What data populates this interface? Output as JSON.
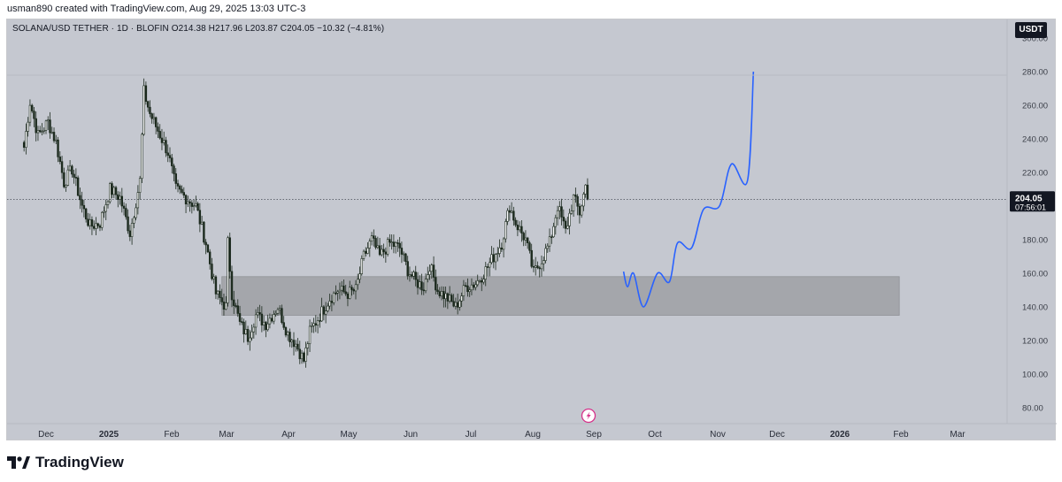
{
  "caption": "usman890 created with TradingView.com, Aug 29, 2025 13:03 UTC-3",
  "symbol_line": "SOLANA/USD TETHER · 1D · BLOFIN  O214.38  H217.96  L203.87  C204.05  −10.32 (−4.81%)",
  "currency": "USDT",
  "footer_logo": "TradingView",
  "icons": {
    "logo": "tradingview-logo-icon",
    "event": "lightning-event-icon"
  },
  "colors": {
    "background": "#c5c8d0",
    "candle_body": "#1c2a1e",
    "zone_fill": "#a4a6ab",
    "projection": "#2962ff",
    "price_badge": "#131722"
  },
  "chart_data": {
    "type": "candlestick",
    "title": "",
    "xlabel": "",
    "ylabel": "",
    "ylim": [
      72,
      304
    ],
    "y_ticks": [
      "80.00",
      "100.00",
      "120.00",
      "140.00",
      "160.00",
      "180.00",
      "200.00",
      "220.00",
      "240.00",
      "260.00",
      "280.00",
      "300.00"
    ],
    "x_ticks": [
      "Dec",
      "2025",
      "Feb",
      "Mar",
      "Apr",
      "May",
      "Jun",
      "Jul",
      "Aug",
      "Sep",
      "Oct",
      "Nov",
      "Dec",
      "2026",
      "Feb",
      "Mar"
    ],
    "last_price": "204.05",
    "countdown": "07:56:01",
    "price_path": [
      [
        "2024-11-20",
        235
      ],
      [
        "2024-11-23",
        262
      ],
      [
        "2024-11-27",
        242
      ],
      [
        "2024-12-02",
        250
      ],
      [
        "2024-12-06",
        238
      ],
      [
        "2024-12-10",
        214
      ],
      [
        "2024-12-14",
        222
      ],
      [
        "2024-12-19",
        200
      ],
      [
        "2024-12-23",
        188
      ],
      [
        "2024-12-28",
        190
      ],
      [
        "2025-01-02",
        210
      ],
      [
        "2025-01-07",
        205
      ],
      [
        "2025-01-12",
        184
      ],
      [
        "2025-01-17",
        215
      ],
      [
        "2025-01-19",
        268
      ],
      [
        "2025-01-22",
        255
      ],
      [
        "2025-01-26",
        245
      ],
      [
        "2025-01-31",
        232
      ],
      [
        "2025-02-04",
        210
      ],
      [
        "2025-02-09",
        205
      ],
      [
        "2025-02-14",
        200
      ],
      [
        "2025-02-19",
        178
      ],
      [
        "2025-02-24",
        148
      ],
      [
        "2025-03-01",
        140
      ],
      [
        "2025-03-02",
        178
      ],
      [
        "2025-03-04",
        148
      ],
      [
        "2025-03-08",
        130
      ],
      [
        "2025-03-12",
        122
      ],
      [
        "2025-03-16",
        135
      ],
      [
        "2025-03-21",
        130
      ],
      [
        "2025-03-27",
        140
      ],
      [
        "2025-04-01",
        124
      ],
      [
        "2025-04-05",
        118
      ],
      [
        "2025-04-09",
        108
      ],
      [
        "2025-04-12",
        125
      ],
      [
        "2025-04-17",
        135
      ],
      [
        "2025-04-22",
        145
      ],
      [
        "2025-04-26",
        150
      ],
      [
        "2025-05-01",
        148
      ],
      [
        "2025-05-05",
        150
      ],
      [
        "2025-05-09",
        170
      ],
      [
        "2025-05-13",
        180
      ],
      [
        "2025-05-17",
        170
      ],
      [
        "2025-05-22",
        178
      ],
      [
        "2025-05-27",
        175
      ],
      [
        "2025-05-31",
        162
      ],
      [
        "2025-06-04",
        155
      ],
      [
        "2025-06-08",
        152
      ],
      [
        "2025-06-11",
        165
      ],
      [
        "2025-06-15",
        150
      ],
      [
        "2025-06-20",
        145
      ],
      [
        "2025-06-24",
        140
      ],
      [
        "2025-06-29",
        152
      ],
      [
        "2025-07-04",
        154
      ],
      [
        "2025-07-08",
        160
      ],
      [
        "2025-07-12",
        168
      ],
      [
        "2025-07-17",
        178
      ],
      [
        "2025-07-21",
        200
      ],
      [
        "2025-07-24",
        190
      ],
      [
        "2025-07-29",
        180
      ],
      [
        "2025-08-02",
        160
      ],
      [
        "2025-08-06",
        168
      ],
      [
        "2025-08-10",
        178
      ],
      [
        "2025-08-14",
        200
      ],
      [
        "2025-08-18",
        185
      ],
      [
        "2025-08-22",
        205
      ],
      [
        "2025-08-25",
        196
      ],
      [
        "2025-08-28",
        212
      ],
      [
        "2025-08-29",
        204
      ]
    ],
    "zone": {
      "x_start": "2025-02-27",
      "x_end": "2026-02-01",
      "y_low": 135,
      "y_high": 158
    },
    "projection": [
      [
        "2025-09-16",
        161
      ],
      [
        "2025-09-18",
        152
      ],
      [
        "2025-09-21",
        160
      ],
      [
        "2025-09-26",
        140
      ],
      [
        "2025-10-03",
        160
      ],
      [
        "2025-10-09",
        155
      ],
      [
        "2025-10-13",
        178
      ],
      [
        "2025-10-20",
        175
      ],
      [
        "2025-10-26",
        198
      ],
      [
        "2025-11-03",
        200
      ],
      [
        "2025-11-09",
        225
      ],
      [
        "2025-11-17",
        215
      ],
      [
        "2025-11-20",
        280
      ]
    ]
  }
}
